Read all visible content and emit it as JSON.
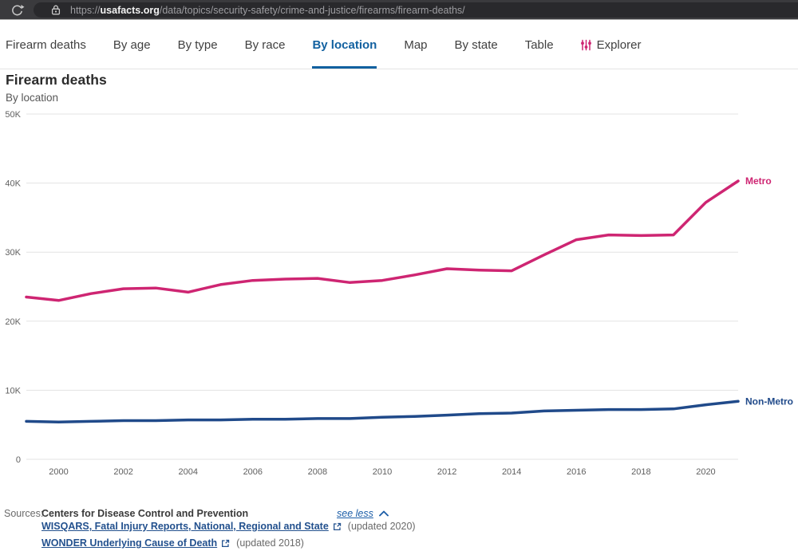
{
  "browser": {
    "url_scheme": "https://",
    "url_domain": "usafacts.org",
    "url_path": "/data/topics/security-safety/crime-and-justice/firearms/firearm-deaths/"
  },
  "nav": {
    "tabs": [
      {
        "label": "Firearm deaths",
        "active": false
      },
      {
        "label": "By age",
        "active": false
      },
      {
        "label": "By type",
        "active": false
      },
      {
        "label": "By race",
        "active": false
      },
      {
        "label": "By location",
        "active": true
      },
      {
        "label": "Map",
        "active": false
      },
      {
        "label": "By state",
        "active": false
      },
      {
        "label": "Table",
        "active": false
      },
      {
        "label": "Explorer",
        "active": false,
        "icon": "sliders-icon",
        "icon_color": "#ce2572"
      }
    ]
  },
  "header": {
    "title": "Firearm deaths",
    "subtitle": "By location"
  },
  "chart_data": {
    "type": "line",
    "title": "Firearm deaths",
    "subtitle": "By location",
    "x": [
      1999,
      2000,
      2001,
      2002,
      2003,
      2004,
      2005,
      2006,
      2007,
      2008,
      2009,
      2010,
      2011,
      2012,
      2013,
      2014,
      2015,
      2016,
      2017,
      2018,
      2019,
      2020,
      2021
    ],
    "series": [
      {
        "name": "Metro",
        "color": "#ce2572",
        "values": [
          23500,
          23000,
          24000,
          24700,
          24800,
          24200,
          25300,
          25900,
          26100,
          26200,
          25600,
          25900,
          26700,
          27600,
          27400,
          27300,
          29600,
          31800,
          32500,
          32400,
          32500,
          37200,
          40300
        ]
      },
      {
        "name": "Non-Metro",
        "color": "#204a8a",
        "values": [
          5500,
          5400,
          5500,
          5600,
          5600,
          5700,
          5700,
          5800,
          5800,
          5900,
          5900,
          6100,
          6200,
          6400,
          6600,
          6700,
          7000,
          7100,
          7200,
          7200,
          7300,
          7900,
          8400
        ]
      }
    ],
    "ylim": [
      0,
      50000
    ],
    "yticks": [
      0,
      10000,
      20000,
      30000,
      40000,
      50000
    ],
    "ytick_labels": [
      "0",
      "10K",
      "20K",
      "30K",
      "40K",
      "50K"
    ],
    "xticks": [
      2000,
      2002,
      2004,
      2006,
      2008,
      2010,
      2012,
      2014,
      2016,
      2018,
      2020
    ],
    "grid": "horizontal",
    "legend_position": "end-of-line-labels"
  },
  "sources": {
    "label": "Sources:",
    "organization": "Centers for Disease Control and Prevention",
    "toggle": {
      "label": "see less",
      "icon": "chevron-up-icon"
    },
    "links": [
      {
        "label": "WISQARS, Fatal Injury Reports, National, Regional and State",
        "suffix": "(updated 2020)",
        "icon": "external-link-icon"
      },
      {
        "label": "WONDER Underlying Cause of Death",
        "suffix": "(updated 2018)",
        "icon": "external-link-icon"
      }
    ]
  },
  "icons": {
    "reload": "circular-arrow",
    "lock": "padlock",
    "sliders": "vertical-sliders",
    "chevron_up": "caret-up",
    "external_link": "box-with-arrow"
  },
  "colors": {
    "tab_active": "#1261a0",
    "metro_line": "#ce2572",
    "non_metro_line": "#204a8a",
    "grid_line": "#e3e3e3",
    "axis_text": "#5f5f5f"
  }
}
